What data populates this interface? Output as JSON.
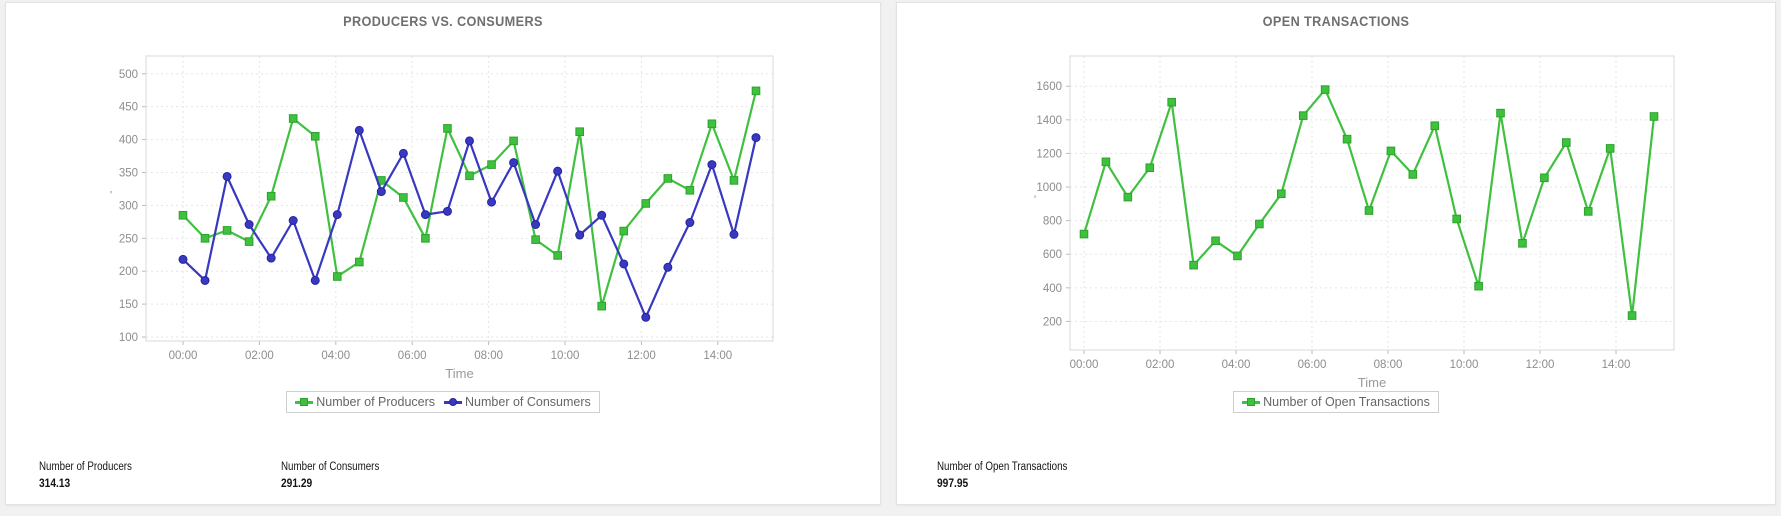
{
  "page": {
    "background_color": "#f1f1f1",
    "panel_background": "#ffffff"
  },
  "panels": [
    {
      "title": "PRODUCERS VS. CONSUMERS",
      "stats": [
        {
          "label": "Number of Producers",
          "value": "314.13"
        },
        {
          "label": "Number of Consumers",
          "value": "291.29"
        }
      ]
    },
    {
      "title": "OPEN TRANSACTIONS",
      "stats": [
        {
          "label": "Number of Open Transactions",
          "value": "997.95"
        }
      ]
    }
  ],
  "chart_data": [
    {
      "type": "line",
      "title": "PRODUCERS VS. CONSUMERS",
      "xlabel": "Time",
      "ylabel": "'",
      "grid": "dashed",
      "legend_position": "bottom",
      "x_span_hours": 15,
      "x_ticks": [
        {
          "label": "00:00",
          "hour": 0
        },
        {
          "label": "02:00",
          "hour": 2
        },
        {
          "label": "04:00",
          "hour": 4
        },
        {
          "label": "06:00",
          "hour": 6
        },
        {
          "label": "08:00",
          "hour": 8
        },
        {
          "label": "10:00",
          "hour": 10
        },
        {
          "label": "12:00",
          "hour": 12
        },
        {
          "label": "14:00",
          "hour": 14
        }
      ],
      "yticks": [
        100,
        150,
        200,
        250,
        300,
        350,
        400,
        450,
        500
      ],
      "ylim": [
        94,
        527
      ],
      "series": [
        {
          "name": "Number of Producers",
          "color": "#3fc13f",
          "edge_color": "#2aa32a",
          "marker": "square",
          "values": [
            285,
            250,
            262,
            245,
            314,
            432,
            405,
            192,
            214,
            338,
            312,
            250,
            417,
            345,
            362,
            398,
            248,
            224,
            412,
            147,
            261,
            303,
            341,
            323,
            424,
            338,
            474
          ]
        },
        {
          "name": "Number of Consumers",
          "color": "#3838c0",
          "edge_color": "#2525a0",
          "marker": "circle",
          "values": [
            218,
            186,
            344,
            271,
            220,
            277,
            186,
            286,
            414,
            321,
            379,
            286,
            291,
            398,
            305,
            365,
            271,
            352,
            255,
            285,
            211,
            130,
            206,
            274,
            362,
            256,
            403
          ]
        }
      ]
    },
    {
      "type": "line",
      "title": "OPEN TRANSACTIONS",
      "xlabel": "Time",
      "ylabel": "'",
      "grid": "dashed",
      "legend_position": "bottom",
      "x_span_hours": 15,
      "x_ticks": [
        {
          "label": "00:00",
          "hour": 0
        },
        {
          "label": "02:00",
          "hour": 2
        },
        {
          "label": "04:00",
          "hour": 4
        },
        {
          "label": "06:00",
          "hour": 6
        },
        {
          "label": "08:00",
          "hour": 8
        },
        {
          "label": "10:00",
          "hour": 10
        },
        {
          "label": "12:00",
          "hour": 12
        },
        {
          "label": "14:00",
          "hour": 14
        }
      ],
      "yticks": [
        200,
        400,
        600,
        800,
        1000,
        1200,
        1400,
        1600
      ],
      "ylim": [
        30,
        1780
      ],
      "series": [
        {
          "name": "Number of Open Transactions",
          "color": "#3fc13f",
          "edge_color": "#2aa32a",
          "marker": "square",
          "values": [
            720,
            1150,
            940,
            1115,
            1505,
            535,
            680,
            590,
            780,
            960,
            1425,
            1580,
            1285,
            860,
            1215,
            1075,
            1365,
            810,
            410,
            1440,
            665,
            1055,
            1265,
            855,
            1230,
            235,
            1420
          ]
        }
      ]
    }
  ]
}
